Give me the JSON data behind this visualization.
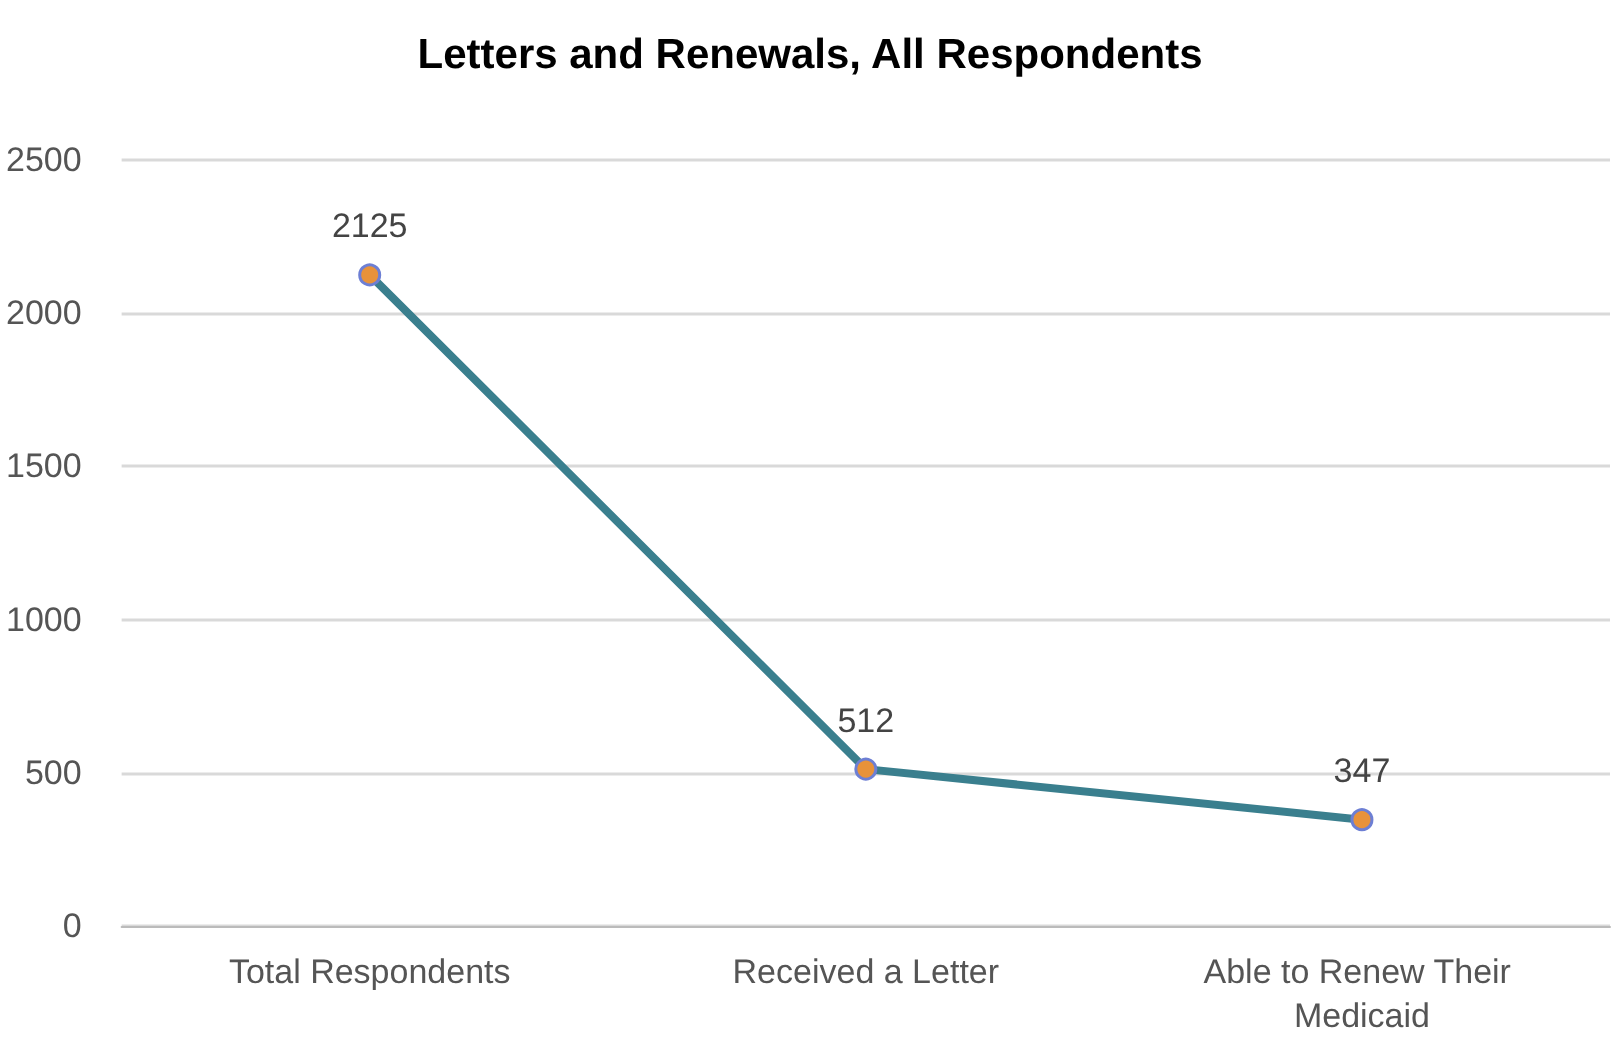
{
  "chart_data": {
    "type": "line",
    "title": "Letters and Renewals, All Respondents",
    "categories": [
      "Total Respondents",
      "Received a Letter",
      "Able to Renew Their Medicaid"
    ],
    "series": [
      {
        "color": "#3a7f8e",
        "values": [
          2125,
          512,
          347
        ]
      }
    ],
    "ylim": [
      0,
      2500
    ],
    "yticks": [
      0,
      500,
      1000,
      1500,
      2000,
      2500
    ],
    "grid": "y",
    "data_labels": true,
    "marker": "circle",
    "line_style": "solid"
  }
}
